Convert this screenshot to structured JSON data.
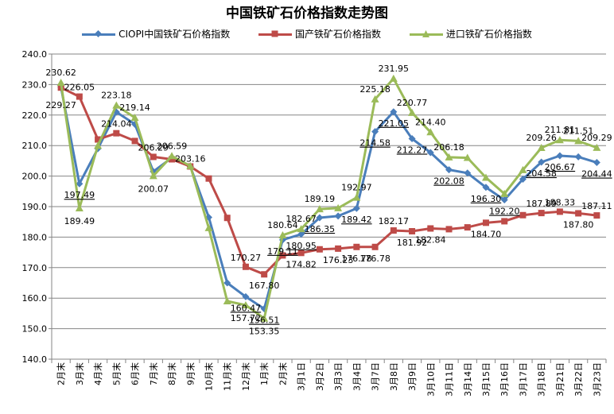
{
  "chart_data": {
    "type": "line",
    "title": "中国铁矿石价格指数走势图",
    "categories": [
      "2月末",
      "3月末",
      "4月末",
      "5月末",
      "6月末",
      "7月末",
      "8月末",
      "9月末",
      "10月末",
      "11月末",
      "12月末",
      "1月末",
      "2月末",
      "3月1日",
      "3月2日",
      "3月3日",
      "3月4日",
      "3月7日",
      "3月8日",
      "3月9日",
      "3月10日",
      "3月11日",
      "3月14日",
      "3月15日",
      "3月16日",
      "3月17日",
      "3月18日",
      "3月21日",
      "3月22日",
      "3月23日"
    ],
    "ylim": [
      140,
      240
    ],
    "yticks": [
      "140.0",
      "150.0",
      "160.0",
      "170.0",
      "180.0",
      "190.0",
      "200.0",
      "210.0",
      "220.0",
      "230.0",
      "240.0"
    ],
    "grid": "horizontal",
    "legend_position": "top",
    "series": [
      {
        "name": "CIOPI中国铁矿石价格指数",
        "color": "#4a7ebb",
        "marker": "diamond",
        "values": [
          229.27,
          197.49,
          209.0,
          221.0,
          217.0,
          201.5,
          206.0,
          203.16,
          186.5,
          165.0,
          160.47,
          156.51,
          179.11,
          180.95,
          186.35,
          186.9,
          189.42,
          214.58,
          221.05,
          212.27,
          207.7,
          202.08,
          201.0,
          196.3,
          192.2,
          199.0,
          204.58,
          206.67,
          206.3,
          204.44
        ],
        "labels": {
          "1": "197.49",
          "16": "189.42",
          "17": "214.58",
          "18": "221.05",
          "19": "212.27",
          "21": "202.08",
          "23": "196.30",
          "24": "192.20",
          "26": "204.58",
          "27": "206.67",
          "29": "204.44",
          "10": "160.47",
          "11": "156.51",
          "12": "179.11",
          "14": "186.35",
          "13": "180.95"
        }
      },
      {
        "name": "国产铁矿石价格指数",
        "color": "#be4b48",
        "marker": "square",
        "values": [
          229.0,
          226.05,
          212.0,
          214.04,
          211.5,
          206.29,
          205.5,
          203.16,
          199.2,
          186.3,
          170.27,
          167.8,
          174.0,
          174.82,
          176.0,
          176.23,
          176.78,
          176.78,
          182.17,
          181.92,
          182.84,
          182.6,
          183.2,
          184.7,
          185.2,
          187.2,
          187.89,
          188.33,
          187.8,
          187.11
        ],
        "labels": {
          "1": "226.05",
          "3": "214.04",
          "5": "206.29",
          "10": "170.27",
          "11": "167.80",
          "13": "174.82",
          "15": "176.23",
          "16": "176.78",
          "17": "176.78",
          "18": "182.17",
          "19": "181.92",
          "20": "182.84",
          "23": "184.70",
          "26": "187.89",
          "27": "188.33",
          "28": "187.80",
          "29": "187.11"
        }
      },
      {
        "name": "进口铁矿石价格指数",
        "color": "#9bbb59",
        "marker": "triangle",
        "values": [
          230.62,
          189.49,
          210.0,
          223.18,
          219.14,
          200.07,
          206.59,
          203.3,
          183.0,
          159.0,
          157.72,
          153.35,
          180.64,
          182.67,
          189.19,
          189.5,
          192.97,
          225.18,
          231.95,
          220.77,
          214.4,
          206.18,
          206.0,
          199.5,
          194.2,
          202.0,
          209.26,
          211.81,
          211.51,
          209.29
        ],
        "labels": {
          "0": "230.62",
          "1": "189.49",
          "3": "223.18",
          "4": "219.14",
          "5": "200.07",
          "6": "206.59",
          "10": "157.72",
          "11": "153.35",
          "12": "180.64",
          "13": "182.67",
          "14": "189.19",
          "16": "192.97",
          "17": "225.18",
          "18": "231.95",
          "19": "220.77",
          "20": "214.40",
          "21": "206.18",
          "26": "209.26",
          "27": "211.81",
          "28": "211.51",
          "29": "209.29"
        }
      }
    ],
    "extra_labels": {
      "0": "229.27",
      "7": "203.16"
    }
  }
}
